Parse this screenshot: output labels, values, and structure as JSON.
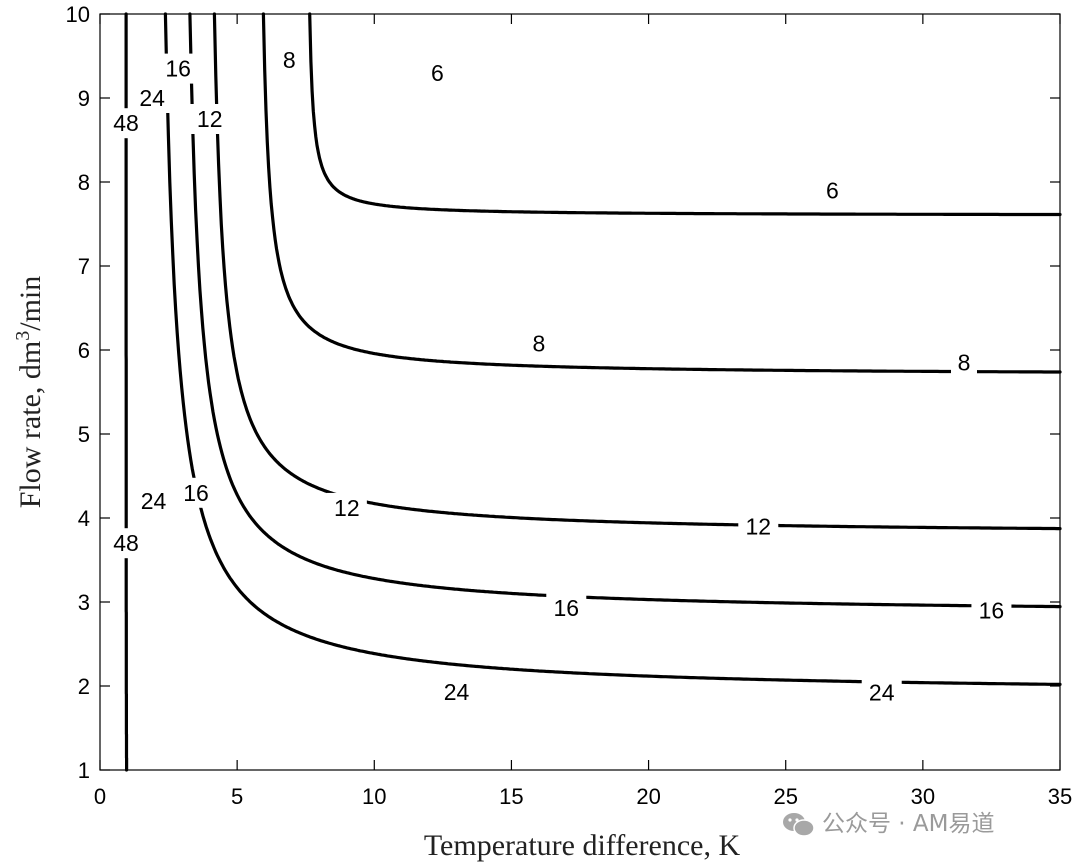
{
  "chart_data": {
    "type": "contour",
    "title": "",
    "xlabel": "Temperature difference, K",
    "ylabel_main": "Flow rate, dm",
    "ylabel_sup": "3",
    "ylabel_tail": "/min",
    "xlim": [
      0,
      35
    ],
    "ylim": [
      1,
      10
    ],
    "xticks": [
      0,
      5,
      10,
      15,
      20,
      25,
      30,
      35
    ],
    "yticks": [
      1,
      2,
      3,
      4,
      5,
      6,
      7,
      8,
      9,
      10
    ],
    "grid": false,
    "levels": [
      6,
      8,
      12,
      16,
      24,
      48
    ],
    "contours": [
      {
        "level": 48,
        "x_asymptote": 0.95,
        "y_asymptote": 0.03,
        "labels": [
          {
            "text": "48",
            "x": 0.95,
            "y": 8.7
          },
          {
            "text": "48",
            "x": 0.95,
            "y": 3.7
          }
        ]
      },
      {
        "level": 24,
        "x_asymptote": 1.9,
        "y_asymptote": 1.9,
        "labels": [
          {
            "text": "24",
            "x": 1.9,
            "y": 9.0
          },
          {
            "text": "24",
            "x": 1.95,
            "y": 4.2
          },
          {
            "text": "24",
            "x": 13,
            "y": 1.93
          },
          {
            "text": "24",
            "x": 28.5,
            "y": 1.92
          }
        ]
      },
      {
        "level": 16,
        "x_asymptote": 2.85,
        "y_asymptote": 2.85,
        "labels": [
          {
            "text": "16",
            "x": 2.85,
            "y": 9.35
          },
          {
            "text": "16",
            "x": 3.5,
            "y": 4.3
          },
          {
            "text": "16",
            "x": 17,
            "y": 2.93
          },
          {
            "text": "16",
            "x": 32.5,
            "y": 2.9
          }
        ]
      },
      {
        "level": 12,
        "x_asymptote": 3.8,
        "y_asymptote": 3.8,
        "labels": [
          {
            "text": "12",
            "x": 4.0,
            "y": 8.75
          },
          {
            "text": "12",
            "x": 9.0,
            "y": 4.12
          },
          {
            "text": "12",
            "x": 24,
            "y": 3.9
          }
        ]
      },
      {
        "level": 8,
        "x_asymptote": 5.7,
        "y_asymptote": 5.7,
        "labels": [
          {
            "text": "8",
            "x": 6.9,
            "y": 9.45
          },
          {
            "text": "8",
            "x": 16,
            "y": 6.08
          },
          {
            "text": "8",
            "x": 31.5,
            "y": 5.85
          }
        ]
      },
      {
        "level": 6,
        "x_asymptote": 7.5,
        "y_asymptote": 7.6,
        "labels": [
          {
            "text": "6",
            "x": 12.3,
            "y": 9.3
          },
          {
            "text": "6",
            "x": 26.7,
            "y": 7.9
          }
        ]
      }
    ]
  },
  "watermark": {
    "icon": "wechat-icon",
    "text": "公众号 · AM易道"
  }
}
